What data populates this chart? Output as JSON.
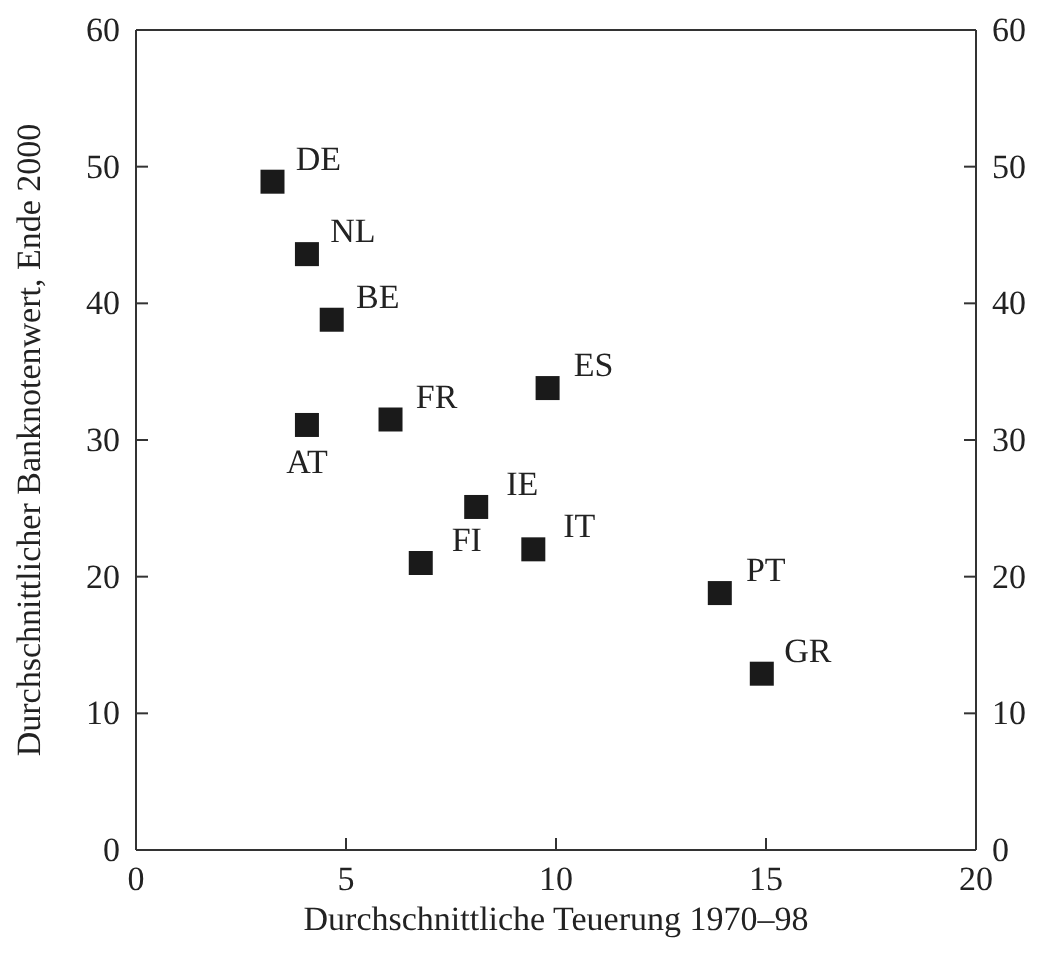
{
  "chart_data": {
    "type": "scatter",
    "xlabel": "Durchschnittliche Teuerung 1970–98",
    "ylabel": "Durchschnittlicher Banknotenwert, Ende 2000",
    "x": [
      3.25,
      4.07,
      4.66,
      4.07,
      6.06,
      9.8,
      8.1,
      6.78,
      9.46,
      13.9,
      14.9
    ],
    "values": [
      48.9,
      43.6,
      38.8,
      31.1,
      31.5,
      33.8,
      25.1,
      21.0,
      22.0,
      18.8,
      12.9
    ],
    "color": "#1a1a1a",
    "marker": "square",
    "annotations": [
      {
        "text": "DE",
        "x": 3.25,
        "y": 48.9
      },
      {
        "text": "NL",
        "x": 4.07,
        "y": 43.6
      },
      {
        "text": "BE",
        "x": 4.66,
        "y": 38.8
      },
      {
        "text": "AT",
        "x": 4.07,
        "y": 31.1
      },
      {
        "text": "FR",
        "x": 6.06,
        "y": 31.5
      },
      {
        "text": "ES",
        "x": 9.8,
        "y": 33.8
      },
      {
        "text": "IE",
        "x": 8.1,
        "y": 25.1
      },
      {
        "text": "FI",
        "x": 6.78,
        "y": 21.0
      },
      {
        "text": "IT",
        "x": 9.46,
        "y": 22.0
      },
      {
        "text": "PT",
        "x": 13.9,
        "y": 18.8
      },
      {
        "text": "GR",
        "x": 14.9,
        "y": 12.9
      }
    ],
    "xlim": [
      0,
      20
    ],
    "xticks": [
      0,
      5,
      10,
      15,
      20
    ],
    "ylim": [
      0,
      60
    ],
    "yticks": [
      0,
      10,
      20,
      30,
      40,
      50,
      60
    ],
    "y2lim": [
      0,
      60
    ],
    "y2ticks": [
      0,
      10,
      20,
      30,
      40,
      50,
      60
    ],
    "grid": false
  }
}
